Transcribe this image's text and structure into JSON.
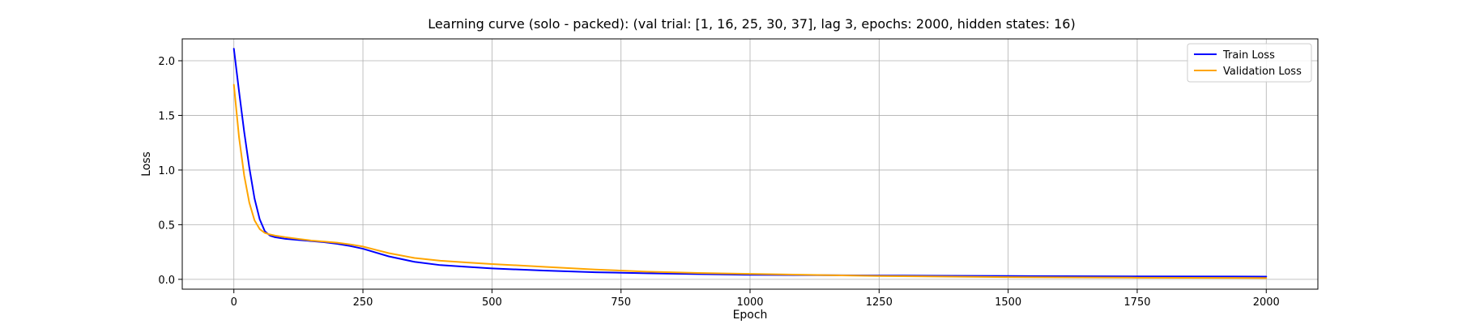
{
  "chart_data": {
    "type": "line",
    "title": "Learning curve (solo - packed): (val trial: [1, 16, 25, 30, 37], lag 3, epochs: 2000, hidden states: 16)",
    "xlabel": "Epoch",
    "ylabel": "Loss",
    "xlim": [
      -100,
      2100
    ],
    "ylim": [
      -0.09,
      2.2
    ],
    "xticks": [
      0,
      250,
      500,
      750,
      1000,
      1250,
      1500,
      1750,
      2000
    ],
    "yticks": [
      0.0,
      0.5,
      1.0,
      1.5,
      2.0
    ],
    "xtick_labels": [
      "0",
      "250",
      "500",
      "750",
      "1000",
      "1250",
      "1500",
      "1750",
      "2000"
    ],
    "ytick_labels": [
      "0.0",
      "0.5",
      "1.0",
      "1.5",
      "2.0"
    ],
    "grid": true,
    "legend_position": "top-right",
    "series": [
      {
        "name": "Train Loss",
        "color": "#0000ff",
        "x": [
          0,
          10,
          20,
          30,
          40,
          50,
          60,
          70,
          80,
          100,
          125,
          150,
          175,
          200,
          225,
          250,
          275,
          300,
          350,
          400,
          450,
          500,
          600,
          700,
          800,
          900,
          1000,
          1250,
          1500,
          1750,
          2000
        ],
        "y": [
          2.11,
          1.72,
          1.35,
          1.02,
          0.74,
          0.55,
          0.44,
          0.4,
          0.385,
          0.37,
          0.36,
          0.35,
          0.34,
          0.325,
          0.305,
          0.28,
          0.245,
          0.21,
          0.16,
          0.13,
          0.115,
          0.1,
          0.08,
          0.065,
          0.055,
          0.048,
          0.042,
          0.035,
          0.03,
          0.027,
          0.025
        ]
      },
      {
        "name": "Validation Loss",
        "color": "#ffa500",
        "x": [
          0,
          10,
          20,
          30,
          40,
          50,
          60,
          70,
          80,
          100,
          125,
          150,
          175,
          200,
          225,
          250,
          275,
          300,
          350,
          400,
          450,
          500,
          600,
          700,
          800,
          900,
          1000,
          1250,
          1500,
          1750,
          2000
        ],
        "y": [
          1.78,
          1.3,
          0.95,
          0.7,
          0.54,
          0.46,
          0.425,
          0.41,
          0.4,
          0.385,
          0.37,
          0.355,
          0.345,
          0.335,
          0.32,
          0.3,
          0.27,
          0.24,
          0.195,
          0.17,
          0.155,
          0.14,
          0.115,
          0.09,
          0.07,
          0.058,
          0.05,
          0.03,
          0.02,
          0.015,
          0.012
        ]
      }
    ]
  }
}
